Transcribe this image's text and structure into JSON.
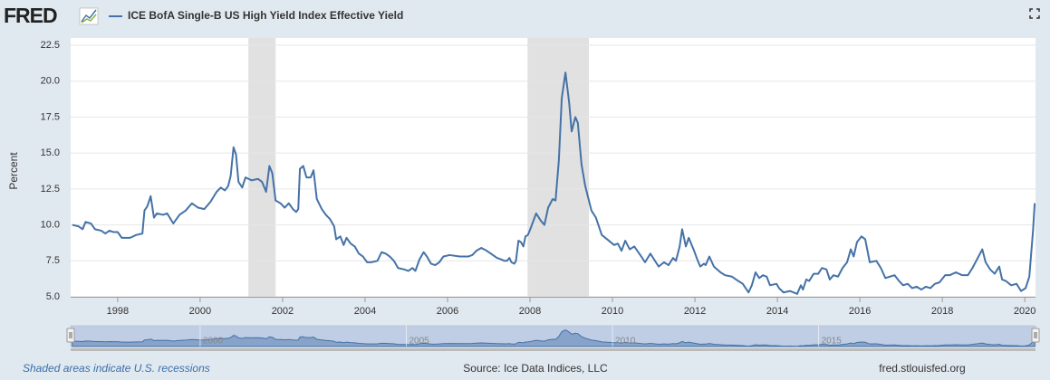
{
  "logo": "FRED",
  "chart_data": {
    "type": "line",
    "ylabel": "Percent",
    "x": [
      1996.9,
      1997.05,
      1997.15,
      1997.22,
      1997.35,
      1997.45,
      1997.6,
      1997.7,
      1997.8,
      1997.9,
      1998.0,
      1998.1,
      1998.3,
      1998.45,
      1998.6,
      1998.65,
      1998.72,
      1998.8,
      1998.88,
      1998.95,
      1999.1,
      1999.2,
      1999.35,
      1999.5,
      1999.65,
      1999.8,
      1999.95,
      2000.1,
      2000.25,
      2000.4,
      2000.5,
      2000.6,
      2000.68,
      2000.74,
      2000.81,
      2000.87,
      2000.93,
      2001.02,
      2001.1,
      2001.25,
      2001.4,
      2001.5,
      2001.6,
      2001.68,
      2001.75,
      2001.83,
      2001.95,
      2002.05,
      2002.15,
      2002.25,
      2002.33,
      2002.38,
      2002.42,
      2002.5,
      2002.58,
      2002.68,
      2002.75,
      2002.83,
      2002.95,
      2003.05,
      2003.15,
      2003.25,
      2003.3,
      2003.4,
      2003.48,
      2003.55,
      2003.65,
      2003.75,
      2003.85,
      2003.95,
      2004.05,
      2004.15,
      2004.3,
      2004.4,
      2004.5,
      2004.6,
      2004.7,
      2004.8,
      2004.95,
      2005.05,
      2005.15,
      2005.22,
      2005.32,
      2005.42,
      2005.5,
      2005.6,
      2005.7,
      2005.8,
      2005.9,
      2006.05,
      2006.3,
      2006.5,
      2006.6,
      2006.7,
      2006.82,
      2006.95,
      2007.05,
      2007.2,
      2007.3,
      2007.38,
      2007.44,
      2007.5,
      2007.55,
      2007.62,
      2007.66,
      2007.72,
      2007.78,
      2007.84,
      2007.89,
      2007.95,
      2008.02,
      2008.15,
      2008.26,
      2008.35,
      2008.44,
      2008.55,
      2008.62,
      2008.7,
      2008.77,
      2008.86,
      2008.95,
      2009.01,
      2009.1,
      2009.16,
      2009.25,
      2009.34,
      2009.49,
      2009.6,
      2009.74,
      2009.87,
      2010.04,
      2010.13,
      2010.22,
      2010.31,
      2010.42,
      2010.53,
      2010.7,
      2010.79,
      2010.92,
      2011.12,
      2011.25,
      2011.36,
      2011.47,
      2011.54,
      2011.63,
      2011.69,
      2011.78,
      2011.85,
      2011.98,
      2012.07,
      2012.13,
      2012.22,
      2012.26,
      2012.35,
      2012.46,
      2012.62,
      2012.73,
      2012.9,
      2013.05,
      2013.16,
      2013.3,
      2013.38,
      2013.47,
      2013.56,
      2013.65,
      2013.74,
      2013.82,
      2013.98,
      2014.04,
      2014.15,
      2014.31,
      2014.48,
      2014.57,
      2014.62,
      2014.7,
      2014.77,
      2014.88,
      2014.99,
      2015.08,
      2015.19,
      2015.27,
      2015.36,
      2015.47,
      2015.58,
      2015.69,
      2015.78,
      2015.85,
      2015.93,
      2016.04,
      2016.13,
      2016.24,
      2016.4,
      2016.51,
      2016.62,
      2016.73,
      2016.84,
      2016.95,
      2017.05,
      2017.16,
      2017.27,
      2017.38,
      2017.49,
      2017.6,
      2017.71,
      2017.82,
      2017.93,
      2018.07,
      2018.18,
      2018.33,
      2018.48,
      2018.62,
      2018.73,
      2018.86,
      2018.97,
      2019.05,
      2019.16,
      2019.27,
      2019.38,
      2019.45,
      2019.54,
      2019.67,
      2019.8,
      2019.91,
      2020.02,
      2020.11,
      2020.2,
      2020.24
    ],
    "series": [
      {
        "name": "ICE BofA Single-B US High Yield Index Effective Yield",
        "color": "#4572a7",
        "values": [
          10.0,
          9.9,
          9.7,
          10.2,
          10.1,
          9.7,
          9.6,
          9.4,
          9.6,
          9.5,
          9.5,
          9.1,
          9.1,
          9.3,
          9.4,
          11.0,
          11.3,
          12.0,
          10.5,
          10.8,
          10.7,
          10.8,
          10.1,
          10.7,
          11.0,
          11.5,
          11.2,
          11.1,
          11.6,
          12.3,
          12.6,
          12.4,
          12.7,
          13.4,
          15.4,
          14.9,
          13.0,
          12.6,
          13.3,
          13.1,
          13.2,
          13.0,
          12.3,
          14.1,
          13.6,
          11.7,
          11.5,
          11.2,
          11.5,
          11.1,
          10.9,
          11.1,
          13.9,
          14.1,
          13.3,
          13.3,
          13.8,
          11.8,
          11.1,
          10.7,
          10.4,
          9.9,
          9.0,
          9.2,
          8.6,
          9.1,
          8.7,
          8.5,
          8.0,
          7.8,
          7.4,
          7.4,
          7.5,
          8.1,
          8.0,
          7.8,
          7.5,
          7.0,
          6.9,
          6.8,
          7.0,
          6.8,
          7.6,
          8.1,
          7.8,
          7.3,
          7.2,
          7.4,
          7.8,
          7.9,
          7.8,
          7.8,
          7.9,
          8.2,
          8.4,
          8.2,
          8.0,
          7.7,
          7.6,
          7.5,
          7.5,
          7.7,
          7.4,
          7.3,
          7.5,
          8.9,
          8.8,
          8.5,
          9.2,
          9.3,
          9.8,
          10.8,
          10.3,
          10.0,
          11.2,
          11.8,
          11.7,
          14.5,
          18.8,
          20.6,
          18.5,
          16.5,
          17.5,
          17.1,
          14.2,
          12.7,
          11.0,
          10.5,
          9.3,
          9.0,
          8.6,
          8.7,
          8.2,
          8.9,
          8.3,
          8.5,
          7.8,
          7.4,
          8.0,
          7.1,
          7.4,
          7.2,
          7.7,
          7.5,
          8.5,
          9.7,
          8.5,
          9.1,
          8.2,
          7.5,
          7.1,
          7.3,
          7.2,
          7.8,
          7.1,
          6.7,
          6.5,
          6.4,
          6.1,
          5.9,
          5.3,
          5.8,
          6.7,
          6.3,
          6.5,
          6.4,
          5.8,
          5.9,
          5.6,
          5.3,
          5.4,
          5.2,
          5.8,
          5.5,
          6.2,
          6.1,
          6.6,
          6.6,
          7.0,
          6.9,
          6.2,
          6.5,
          6.4,
          7.0,
          7.4,
          8.3,
          7.8,
          8.8,
          9.2,
          9.0,
          7.4,
          7.5,
          7.0,
          6.3,
          6.4,
          6.5,
          6.1,
          5.8,
          5.9,
          5.6,
          5.7,
          5.5,
          5.7,
          5.6,
          5.9,
          6.0,
          6.5,
          6.5,
          6.7,
          6.5,
          6.5,
          7.0,
          7.7,
          8.3,
          7.4,
          6.9,
          6.6,
          7.1,
          6.2,
          6.1,
          5.8,
          5.9,
          5.4,
          5.6,
          6.4,
          9.6,
          11.5
        ]
      }
    ],
    "xlim": [
      1996.86,
      2020.26
    ],
    "xticks": [
      1998,
      2000,
      2002,
      2004,
      2006,
      2008,
      2010,
      2012,
      2014,
      2016,
      2018,
      2020
    ],
    "ylim": [
      5,
      22.5
    ],
    "yticks": [
      {
        "value": 5,
        "label": "5.0"
      },
      7.5,
      {
        "value": 10,
        "label": "10.0"
      },
      12.5,
      {
        "value": 15,
        "label": "15.0"
      },
      17.5,
      {
        "value": 20,
        "label": "20.0"
      },
      22.5
    ],
    "grid": true,
    "recessions": [
      [
        2001.17,
        2001.83
      ],
      [
        2007.94,
        2009.43
      ]
    ],
    "recession_color": "#e1e1e1",
    "navigator_xticks": [
      2000,
      2005,
      2010,
      2015
    ]
  },
  "footer": {
    "note": "Shaded areas indicate U.S. recessions",
    "source": "Source: Ice Data Indices, LLC",
    "site": "fred.stlouisfed.org"
  }
}
